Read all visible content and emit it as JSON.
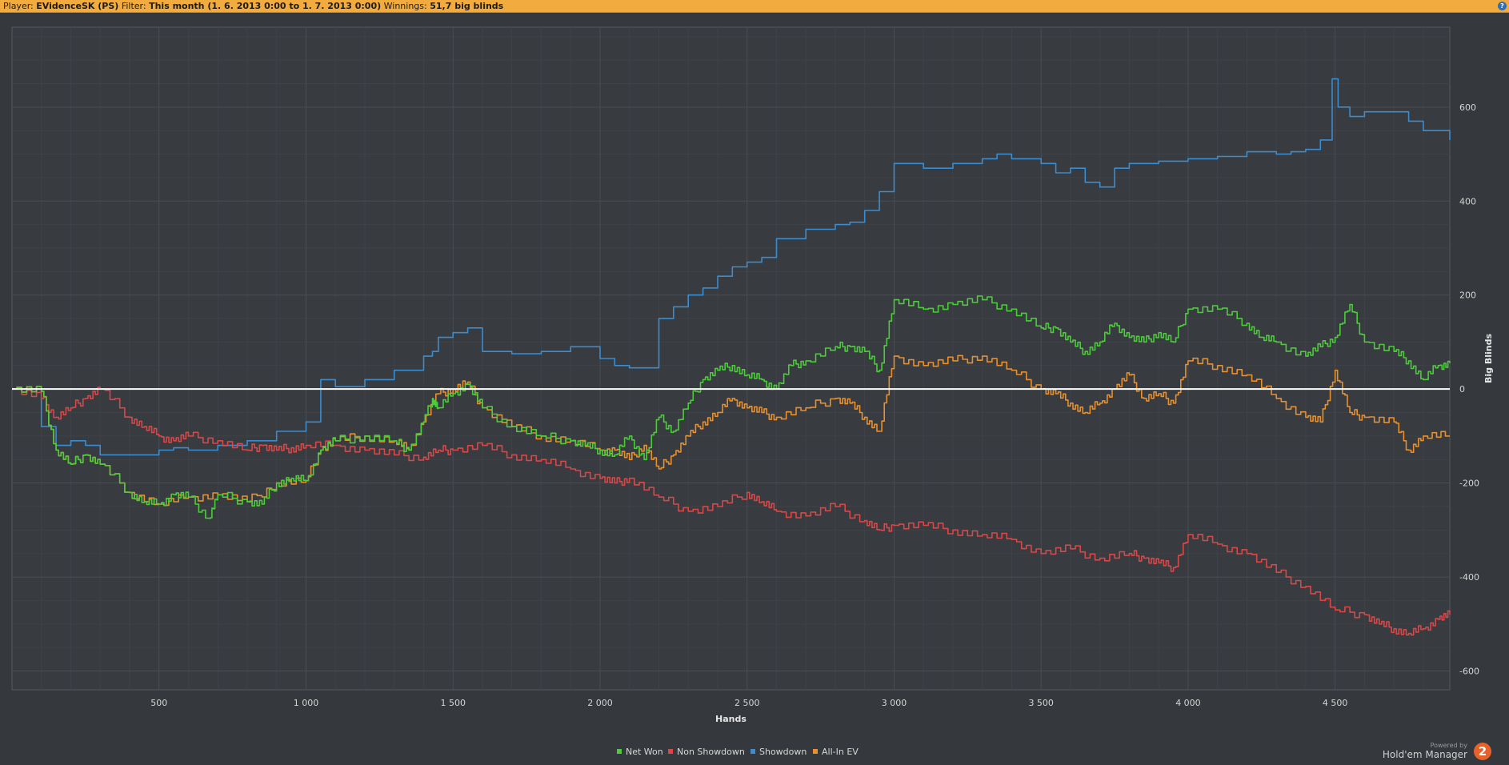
{
  "header": {
    "player_label": "Player:",
    "player_value": "EVidenceSK (PS)",
    "filter_label": "Filter:",
    "filter_value": "This month (1. 6. 2013 0:00 to 1. 7. 2013 0:00)",
    "winnings_label": "Winnings:",
    "winnings_value": "51,7 big blinds",
    "help_label": "?"
  },
  "branding": {
    "powered_by": "Powered by",
    "product": "Hold'em Manager",
    "logo_text": "2"
  },
  "colors": {
    "background": "#35383c",
    "grid": "#4a4e53",
    "zero_line": "#ffffff",
    "net_won": "#4ccc3b",
    "non_showdown": "#d94848",
    "showdown": "#3a8dd0",
    "all_in_ev": "#e8902e",
    "header_bar": "#f2ab3e"
  },
  "chart_data": {
    "type": "line",
    "xlabel": "Hands",
    "ylabel": "Big Blinds",
    "xlim": [
      0,
      4890
    ],
    "ylim": [
      -640,
      770
    ],
    "x_ticks": [
      500,
      1000,
      1500,
      2000,
      2500,
      3000,
      3500,
      4000,
      4500
    ],
    "x_tick_labels": [
      "500",
      "1 000",
      "1 500",
      "2 000",
      "2 500",
      "3 000",
      "3 500",
      "4 000",
      "4 500"
    ],
    "y_ticks": [
      600,
      400,
      200,
      0,
      -200,
      -400,
      -600
    ],
    "y_tick_labels": [
      "600",
      "400",
      "200",
      "0",
      "-200",
      "-400",
      "-600"
    ],
    "grid": true,
    "legend_position": "bottom-center",
    "series": [
      {
        "name": "Net Won",
        "color": "#4ccc3b",
        "x": [
          0,
          100,
          150,
          200,
          250,
          300,
          400,
          450,
          500,
          550,
          600,
          670,
          700,
          800,
          850,
          900,
          950,
          1000,
          1050,
          1100,
          1200,
          1300,
          1350,
          1400,
          1430,
          1450,
          1500,
          1550,
          1600,
          1700,
          1800,
          1900,
          1950,
          2000,
          2050,
          2100,
          2150,
          2200,
          2250,
          2300,
          2350,
          2400,
          2450,
          2500,
          2550,
          2600,
          2650,
          2700,
          2800,
          2850,
          2900,
          2950,
          3000,
          3100,
          3200,
          3300,
          3400,
          3500,
          3550,
          3600,
          3650,
          3700,
          3750,
          3800,
          3850,
          3900,
          3950,
          4000,
          4100,
          4200,
          4250,
          4300,
          4400,
          4450,
          4500,
          4550,
          4600,
          4700,
          4750,
          4800,
          4850,
          4890
        ],
        "values": [
          0,
          -5,
          -130,
          -160,
          -140,
          -160,
          -220,
          -240,
          -245,
          -225,
          -230,
          -275,
          -225,
          -240,
          -245,
          -200,
          -190,
          -195,
          -130,
          -110,
          -100,
          -110,
          -130,
          -70,
          -20,
          -40,
          -10,
          10,
          -40,
          -80,
          -100,
          -110,
          -120,
          -130,
          -140,
          -100,
          -150,
          -60,
          -90,
          -30,
          20,
          40,
          50,
          30,
          20,
          0,
          50,
          60,
          90,
          90,
          80,
          40,
          190,
          170,
          180,
          190,
          170,
          130,
          130,
          100,
          80,
          100,
          140,
          110,
          100,
          120,
          100,
          170,
          170,
          140,
          110,
          100,
          70,
          90,
          110,
          180,
          100,
          80,
          60,
          20,
          50,
          55
        ]
      },
      {
        "name": "Non Showdown",
        "color": "#d94848",
        "x": [
          0,
          100,
          150,
          200,
          250,
          300,
          400,
          450,
          500,
          550,
          600,
          700,
          800,
          850,
          900,
          950,
          1000,
          1100,
          1200,
          1300,
          1400,
          1450,
          1500,
          1600,
          1700,
          1800,
          1900,
          2000,
          2050,
          2100,
          2200,
          2300,
          2400,
          2500,
          2550,
          2600,
          2700,
          2800,
          2900,
          2950,
          3000,
          3100,
          3200,
          3300,
          3400,
          3500,
          3600,
          3700,
          3800,
          3850,
          3900,
          3950,
          4000,
          4100,
          4200,
          4300,
          4400,
          4500,
          4600,
          4650,
          4700,
          4750,
          4800,
          4850,
          4890
        ],
        "values": [
          0,
          -20,
          -60,
          -40,
          -20,
          0,
          -60,
          -80,
          -100,
          -110,
          -100,
          -110,
          -130,
          -120,
          -130,
          -125,
          -120,
          -120,
          -130,
          -140,
          -145,
          -130,
          -130,
          -120,
          -140,
          -150,
          -170,
          -190,
          -200,
          -190,
          -230,
          -260,
          -250,
          -220,
          -240,
          -260,
          -270,
          -250,
          -280,
          -300,
          -290,
          -290,
          -300,
          -310,
          -320,
          -350,
          -340,
          -360,
          -350,
          -360,
          -370,
          -380,
          -310,
          -330,
          -350,
          -390,
          -420,
          -470,
          -480,
          -500,
          -510,
          -520,
          -510,
          -490,
          -480
        ]
      },
      {
        "name": "Showdown",
        "color": "#3a8dd0",
        "x": [
          0,
          100,
          150,
          200,
          250,
          300,
          400,
          500,
          550,
          600,
          700,
          800,
          900,
          1000,
          1050,
          1100,
          1200,
          1300,
          1400,
          1430,
          1450,
          1500,
          1550,
          1600,
          1700,
          1800,
          1900,
          2000,
          2050,
          2100,
          2150,
          2200,
          2250,
          2300,
          2350,
          2400,
          2450,
          2500,
          2550,
          2600,
          2700,
          2800,
          2850,
          2900,
          2950,
          3000,
          3100,
          3200,
          3300,
          3350,
          3400,
          3500,
          3550,
          3600,
          3650,
          3700,
          3750,
          3800,
          3900,
          4000,
          4100,
          4200,
          4300,
          4350,
          4400,
          4450,
          4490,
          4510,
          4550,
          4600,
          4700,
          4750,
          4800,
          4890
        ],
        "values": [
          0,
          -80,
          -120,
          -110,
          -120,
          -140,
          -140,
          -130,
          -125,
          -130,
          -120,
          -110,
          -90,
          -70,
          20,
          5,
          20,
          40,
          70,
          80,
          110,
          120,
          130,
          80,
          75,
          80,
          90,
          65,
          50,
          45,
          45,
          150,
          175,
          200,
          215,
          240,
          260,
          270,
          280,
          320,
          340,
          350,
          355,
          380,
          420,
          480,
          470,
          480,
          490,
          500,
          490,
          480,
          460,
          470,
          440,
          430,
          470,
          480,
          485,
          490,
          495,
          505,
          500,
          505,
          510,
          530,
          660,
          600,
          580,
          590,
          590,
          570,
          550,
          530
        ]
      },
      {
        "name": "All-In EV",
        "color": "#e8902e",
        "x": [
          0,
          100,
          150,
          200,
          250,
          300,
          400,
          500,
          600,
          700,
          800,
          900,
          1000,
          1050,
          1100,
          1200,
          1300,
          1350,
          1400,
          1450,
          1500,
          1550,
          1600,
          1700,
          1800,
          1900,
          2000,
          2050,
          2100,
          2150,
          2200,
          2250,
          2300,
          2350,
          2400,
          2450,
          2500,
          2550,
          2600,
          2700,
          2800,
          2850,
          2900,
          2950,
          3000,
          3100,
          3200,
          3300,
          3400,
          3500,
          3550,
          3600,
          3650,
          3700,
          3750,
          3800,
          3850,
          3900,
          3950,
          4000,
          4100,
          4200,
          4300,
          4400,
          4450,
          4500,
          4550,
          4600,
          4700,
          4750,
          4800,
          4890
        ],
        "values": [
          0,
          -5,
          -130,
          -160,
          -140,
          -160,
          -220,
          -245,
          -230,
          -225,
          -240,
          -200,
          -195,
          -130,
          -110,
          -100,
          -110,
          -130,
          -70,
          -10,
          0,
          15,
          -40,
          -80,
          -100,
          -110,
          -130,
          -130,
          -150,
          -120,
          -170,
          -140,
          -100,
          -70,
          -50,
          -20,
          -40,
          -50,
          -60,
          -40,
          -20,
          -30,
          -60,
          -90,
          70,
          50,
          60,
          70,
          40,
          0,
          -10,
          -30,
          -50,
          -30,
          0,
          30,
          -20,
          -10,
          -30,
          60,
          50,
          30,
          -20,
          -60,
          -70,
          40,
          -50,
          -60,
          -70,
          -130,
          -100,
          -100
        ]
      }
    ]
  }
}
